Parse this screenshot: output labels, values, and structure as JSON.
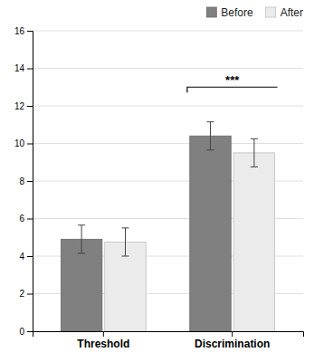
{
  "chart_data": {
    "type": "bar",
    "categories": [
      "Threshold",
      "Discrimination"
    ],
    "series": [
      {
        "name": "Before",
        "color": "#808080",
        "values": [
          4.9,
          10.4
        ],
        "errors": [
          0.75,
          0.75
        ]
      },
      {
        "name": "After",
        "color": "#ebebeb",
        "values": [
          4.75,
          9.5
        ],
        "errors": [
          0.75,
          0.75
        ]
      }
    ],
    "ylim": [
      0,
      16
    ],
    "yticks": [
      0,
      2,
      4,
      6,
      8,
      10,
      12,
      14,
      16
    ],
    "grid": true,
    "legend": "upper right",
    "annotations": [
      {
        "text": "***",
        "x": "Discrimination",
        "y": 13.0
      }
    ]
  }
}
